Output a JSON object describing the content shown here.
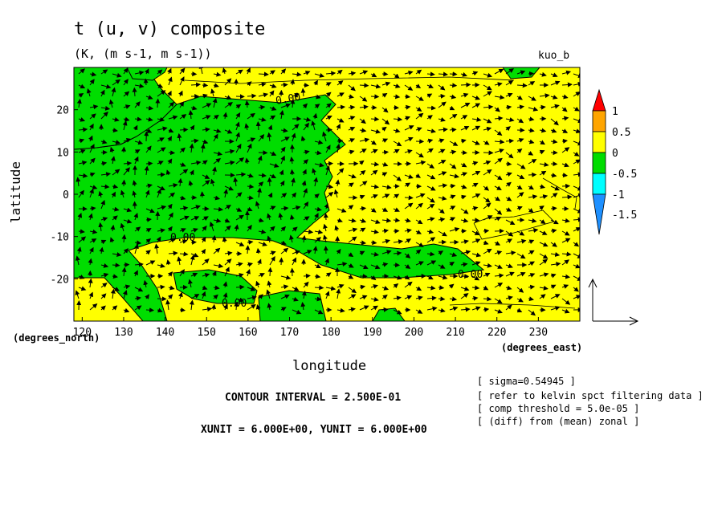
{
  "chart_data": {
    "type": "heatmap",
    "title": "t (u, v) composite",
    "subtitle": "(K, (m s-1, m s-1))",
    "tag": "kuo_b",
    "xlabel": "longitude",
    "ylabel": "latitude",
    "x_unit": "(degrees_east)",
    "y_unit": "(degrees_north)",
    "xlim": [
      118,
      240
    ],
    "ylim": [
      -30,
      30
    ],
    "x_ticks": [
      120,
      130,
      140,
      150,
      160,
      170,
      180,
      190,
      200,
      210,
      220,
      230
    ],
    "y_ticks": [
      20,
      10,
      0,
      -10,
      -20
    ],
    "colorbar": {
      "labels": [
        "1",
        "0.5",
        "0",
        "-0.5",
        "-1",
        "-1.5"
      ],
      "colors": [
        "#ff0000",
        "#ffa500",
        "#ffff00",
        "#00dd00",
        "#00ffff",
        "#1e90ff"
      ]
    },
    "contour_labels": [
      "0.00",
      "0.00",
      "0.00",
      "0.00"
    ],
    "contour_interval": "CONTOUR INTERVAL = 2.500E-01",
    "vector_units": "XUNIT = 6.000E+00, YUNIT = 6.000E+00",
    "notes": [
      "[ sigma=0.54945 ]",
      "[ refer to kelvin spct filtering data ]",
      "[ comp threshold = 5.0e-05 ]",
      "[ (diff) from (mean) zonal ]"
    ]
  }
}
